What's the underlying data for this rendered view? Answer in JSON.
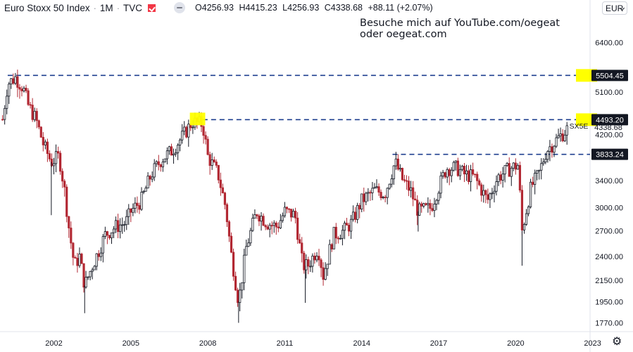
{
  "header": {
    "symbol": "Euro Stoxx 50 Index",
    "interval": "1M",
    "source": "TVC",
    "open_label": "O",
    "open": "4256.93",
    "high_label": "H",
    "high": "4415.23",
    "low_label": "L",
    "low": "4256.93",
    "close_label": "C",
    "close": "4338.68",
    "change": "+88.11 (+2.07%)"
  },
  "currency": "EUR",
  "annotation": {
    "line1": "Besuche mich auf YouTube.com/oegeat",
    "line2": "oder oegeat.com"
  },
  "colors": {
    "up": "#131722",
    "down": "#b22833",
    "hline": "#1e3f8f",
    "highlight": "#ffff00",
    "label_bg": "#131722",
    "last_price": "#131722"
  },
  "chart_data": {
    "type": "candlestick",
    "scale": "log",
    "ylim": [
      1700,
      7200
    ],
    "y_ticks": [
      "6400.00",
      "5100.00",
      "4200.00",
      "3400.00",
      "3000.00",
      "2700.00",
      "2400.00",
      "2150.00",
      "1950.00",
      "1770.00"
    ],
    "x_ticks": [
      "2002",
      "2005",
      "2008",
      "2011",
      "2014",
      "2017",
      "2020",
      "2023"
    ],
    "xlim": [
      1999.9,
      2022.9
    ],
    "symbol_label": "SX5E",
    "last_price": 4338.68,
    "last_price_label": "4338.68",
    "levels": [
      {
        "value": 5504.45,
        "label": "5504.45",
        "x_start": 2000.2
      },
      {
        "value": 4493.2,
        "label": "4493.20",
        "x_start": 2007.8
      },
      {
        "value": 3833.24,
        "label": "3833.24",
        "x_start": 2015.2
      }
    ],
    "highlights": [
      {
        "x_from": 2007.3,
        "x_to": 2007.9,
        "y_from": 4380,
        "y_to": 4640
      }
    ],
    "monthly_close_path": [
      [
        2000.0,
        4500
      ],
      [
        2000.2,
        5300
      ],
      [
        2000.5,
        5450
      ],
      [
        2000.8,
        5200
      ],
      [
        2001.0,
        4800
      ],
      [
        2001.3,
        4500
      ],
      [
        2001.6,
        4000
      ],
      [
        2001.9,
        3700
      ],
      [
        2002.2,
        3800
      ],
      [
        2002.4,
        3300
      ],
      [
        2002.6,
        2700
      ],
      [
        2002.8,
        2300
      ],
      [
        2003.0,
        2400
      ],
      [
        2003.2,
        2100
      ],
      [
        2003.5,
        2300
      ],
      [
        2003.8,
        2500
      ],
      [
        2004.0,
        2650
      ],
      [
        2004.4,
        2750
      ],
      [
        2004.8,
        2800
      ],
      [
        2005.0,
        2950
      ],
      [
        2005.4,
        3100
      ],
      [
        2005.8,
        3500
      ],
      [
        2006.2,
        3750
      ],
      [
        2006.6,
        3900
      ],
      [
        2007.0,
        4150
      ],
      [
        2007.4,
        4450
      ],
      [
        2007.8,
        4400
      ],
      [
        2008.0,
        3800
      ],
      [
        2008.4,
        3500
      ],
      [
        2008.7,
        3000
      ],
      [
        2008.9,
        2450
      ],
      [
        2009.2,
        1950
      ],
      [
        2009.5,
        2500
      ],
      [
        2009.9,
        2950
      ],
      [
        2010.3,
        2800
      ],
      [
        2010.7,
        2750
      ],
      [
        2011.0,
        2950
      ],
      [
        2011.4,
        2900
      ],
      [
        2011.7,
        2300
      ],
      [
        2011.9,
        2300
      ],
      [
        2012.3,
        2500
      ],
      [
        2012.5,
        2200
      ],
      [
        2012.9,
        2650
      ],
      [
        2013.3,
        2700
      ],
      [
        2013.6,
        2800
      ],
      [
        2014.0,
        3100
      ],
      [
        2014.5,
        3250
      ],
      [
        2014.9,
        3200
      ],
      [
        2015.3,
        3700
      ],
      [
        2015.6,
        3400
      ],
      [
        2015.9,
        3250
      ],
      [
        2016.2,
        2950
      ],
      [
        2016.7,
        3000
      ],
      [
        2016.9,
        3200
      ],
      [
        2017.3,
        3600
      ],
      [
        2017.7,
        3600
      ],
      [
        2018.0,
        3500
      ],
      [
        2018.4,
        3450
      ],
      [
        2018.9,
        3100
      ],
      [
        2019.3,
        3450
      ],
      [
        2019.8,
        3600
      ],
      [
        2020.1,
        3650
      ],
      [
        2020.25,
        2700
      ],
      [
        2020.6,
        3300
      ],
      [
        2020.9,
        3500
      ],
      [
        2021.2,
        3900
      ],
      [
        2021.6,
        4100
      ],
      [
        2021.9,
        4250
      ],
      [
        2022.0,
        4300
      ]
    ],
    "extreme_wicks": [
      [
        2001.9,
        2900
      ],
      [
        2003.2,
        1850
      ],
      [
        2009.2,
        1770
      ],
      [
        2011.8,
        1940
      ],
      [
        2016.2,
        2690
      ],
      [
        2020.25,
        2300
      ]
    ]
  }
}
